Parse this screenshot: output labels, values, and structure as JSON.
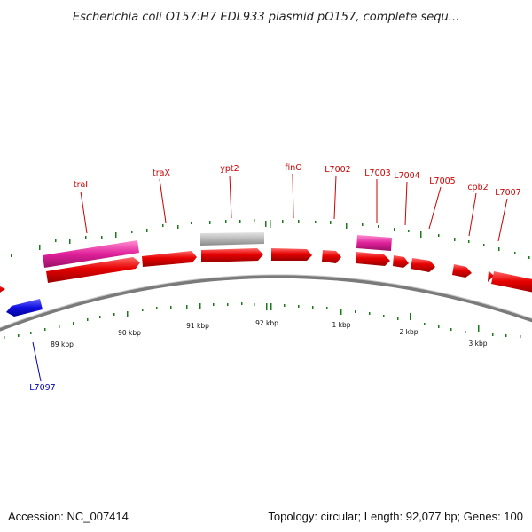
{
  "title": "Escherichia coli O157:H7 EDL933 plasmid pO157, complete sequ...",
  "footer": {
    "accession": "Accession: NC_007414",
    "summary": "Topology: circular; Length: 92,077 bp; Genes: 100"
  },
  "colors": {
    "forward_gene": "#e10000",
    "reverse_gene": "#1010e0",
    "highlight_gene": "#e0209a",
    "gray_gene": "#b8b8b8",
    "label_red": "#cc0000",
    "label_blue": "#0000bb",
    "backbone": "#7a7a7a",
    "gc_tick": "#1a7a1a"
  },
  "scale_labels": [
    "89 kbp",
    "90 kbp",
    "91 kbp",
    "92 kbp",
    "1 kbp",
    "2 kbp",
    "3 kbp"
  ],
  "gene_labels": [
    {
      "text": "traI",
      "strand": "forward"
    },
    {
      "text": "traX",
      "strand": "forward"
    },
    {
      "text": "ypt2",
      "strand": "forward"
    },
    {
      "text": "finO",
      "strand": "forward"
    },
    {
      "text": "L7002",
      "strand": "forward"
    },
    {
      "text": "L7003",
      "strand": "forward"
    },
    {
      "text": "L7004",
      "strand": "forward"
    },
    {
      "text": "L7005",
      "strand": "forward"
    },
    {
      "text": "cpb2",
      "strand": "forward"
    },
    {
      "text": "L7007",
      "strand": "forward"
    },
    {
      "text": "L7097",
      "strand": "reverse"
    }
  ]
}
